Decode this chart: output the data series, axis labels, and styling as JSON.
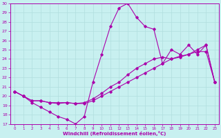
{
  "background_color": "#c8f0f0",
  "grid_color": "#b0dede",
  "line_color": "#aa00aa",
  "marker": "D",
  "xlim": [
    -0.5,
    23.5
  ],
  "ylim": [
    17,
    30
  ],
  "yticks": [
    17,
    18,
    19,
    20,
    21,
    22,
    23,
    24,
    25,
    26,
    27,
    28,
    29,
    30
  ],
  "xticks": [
    0,
    1,
    2,
    3,
    4,
    5,
    6,
    7,
    8,
    9,
    10,
    11,
    12,
    13,
    14,
    15,
    16,
    17,
    18,
    19,
    20,
    21,
    22,
    23
  ],
  "xlabel": "Windchill (Refroidissement éolien,°C)",
  "line1_x": [
    0,
    1,
    2,
    3,
    4,
    5,
    6,
    7,
    8,
    9,
    10,
    11,
    12,
    13,
    14,
    15,
    16,
    17,
    18,
    19,
    20,
    21,
    22,
    23
  ],
  "line1_y": [
    20.5,
    20.0,
    19.3,
    18.8,
    18.3,
    17.8,
    17.5,
    17.0,
    17.8,
    21.5,
    24.5,
    27.5,
    29.5,
    30.0,
    28.5,
    27.5,
    27.2,
    23.5,
    25.0,
    24.5,
    25.5,
    24.5,
    25.5,
    21.5
  ],
  "line2_x": [
    0,
    1,
    2,
    3,
    4,
    5,
    6,
    7,
    8,
    9,
    10,
    11,
    12,
    13,
    14,
    15,
    16,
    17,
    18,
    19,
    20,
    21,
    22,
    23
  ],
  "line2_y": [
    20.5,
    20.0,
    19.5,
    19.5,
    19.3,
    19.2,
    19.3,
    19.2,
    19.3,
    19.7,
    20.3,
    21.0,
    21.5,
    22.3,
    23.0,
    23.5,
    24.0,
    24.2,
    24.0,
    24.3,
    24.5,
    24.8,
    24.8,
    21.5
  ],
  "line3_x": [
    0,
    1,
    2,
    3,
    4,
    5,
    6,
    7,
    8,
    9,
    10,
    11,
    12,
    13,
    14,
    15,
    16,
    17,
    18,
    19,
    20,
    21,
    22,
    23
  ],
  "line3_y": [
    20.5,
    20.0,
    19.5,
    19.5,
    19.3,
    19.3,
    19.3,
    19.2,
    19.2,
    19.5,
    20.0,
    20.5,
    21.0,
    21.5,
    22.0,
    22.5,
    23.0,
    23.5,
    24.0,
    24.2,
    24.5,
    25.0,
    25.5,
    21.5
  ]
}
